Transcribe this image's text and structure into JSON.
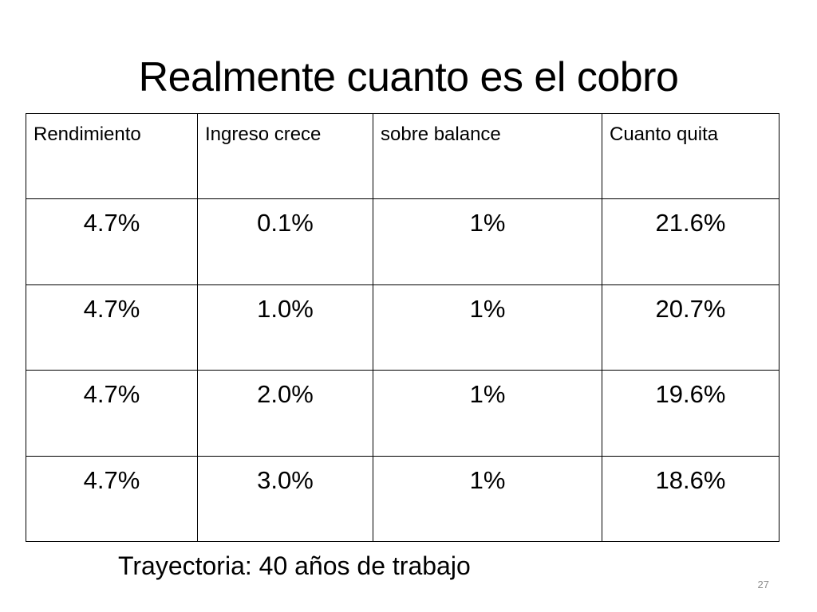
{
  "slide": {
    "title": "Realmente cuanto es el cobro",
    "footnote": "Trayectoria: 40 años de trabajo",
    "page_number": "27"
  },
  "table": {
    "headers": [
      "Rendimiento",
      "Ingreso crece",
      "sobre balance",
      "Cuanto quita"
    ],
    "rows": [
      [
        "4.7%",
        "0.1%",
        "1%",
        "21.6%"
      ],
      [
        "4.7%",
        "1.0%",
        "1%",
        "20.7%"
      ],
      [
        "4.7%",
        "2.0%",
        "1%",
        "19.6%"
      ],
      [
        "4.7%",
        "3.0%",
        "1%",
        "18.6%"
      ]
    ]
  }
}
